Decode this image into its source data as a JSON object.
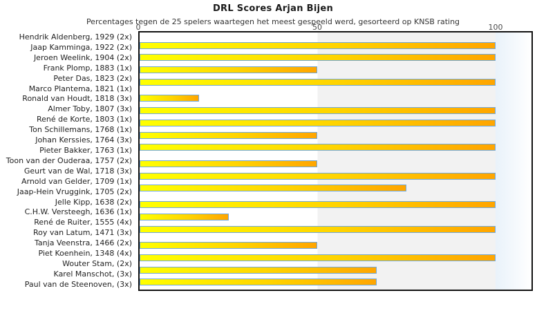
{
  "chart_data": {
    "type": "bar",
    "orientation": "horizontal",
    "title": "DRL Scores Arjan Bijen",
    "subtitle": "Percentages tegen de 25 spelers waartegen het meest gespeeld werd, gesorteerd op KNSB rating",
    "xlabel": "",
    "ylabel": "",
    "xticks": [
      "0",
      "50",
      "100"
    ],
    "xlim": [
      0,
      110
    ],
    "grid": "off",
    "legend": "none",
    "background_band_50_100": "#F2F2F2",
    "background_band_beyond_100": "#E9F2FA",
    "bar_gradient": [
      "#FFFF00",
      "#FFA500"
    ],
    "bar_border_color": "#6FA8DC",
    "players": [
      {
        "label": "Hendrik Aldenberg, 1929 (2x)",
        "name": "Hendrik Aldenberg",
        "rating": 1929,
        "games": "2x",
        "percent": 0
      },
      {
        "label": "Jaap Kamminga, 1922 (2x)",
        "name": "Jaap Kamminga",
        "rating": 1922,
        "games": "2x",
        "percent": 0
      },
      {
        "label": "Jeroen Weelink, 1904 (2x)",
        "name": "Jeroen Weelink",
        "rating": 1904,
        "games": "2x",
        "percent": 100
      },
      {
        "label": "Frank Plomp, 1883 (1x)",
        "name": "Frank Plomp",
        "rating": 1883,
        "games": "1x",
        "percent": 100
      },
      {
        "label": "Peter Das, 1823 (2x)",
        "name": "Peter Das",
        "rating": 1823,
        "games": "2x",
        "percent": 50
      },
      {
        "label": "Marco Plantema, 1821 (1x)",
        "name": "Marco Plantema",
        "rating": 1821,
        "games": "1x",
        "percent": 100
      },
      {
        "label": "Ronald van Houdt, 1818 (3x)",
        "name": "Ronald van Houdt",
        "rating": 1818,
        "games": "3x",
        "percent": 0
      },
      {
        "label": "Almer Toby, 1807 (3x)",
        "name": "Almer Toby",
        "rating": 1807,
        "games": "3x",
        "percent": 16.7
      },
      {
        "label": "René de Korte, 1803 (1x)",
        "name": "René de Korte",
        "rating": 1803,
        "games": "1x",
        "percent": 100
      },
      {
        "label": "Ton Schillemans, 1768 (1x)",
        "name": "Ton Schillemans",
        "rating": 1768,
        "games": "1x",
        "percent": 100
      },
      {
        "label": "Johan Kerssies, 1764 (3x)",
        "name": "Johan Kerssies",
        "rating": 1764,
        "games": "3x",
        "percent": 50
      },
      {
        "label": "Pieter Bakker, 1763 (1x)",
        "name": "Pieter Bakker",
        "rating": 1763,
        "games": "1x",
        "percent": 100
      },
      {
        "label": "Toon van der Ouderaa, 1757 (2x)",
        "name": "Toon van der Ouderaa",
        "rating": 1757,
        "games": "2x",
        "percent": 0
      },
      {
        "label": "Geurt van de Wal, 1718 (3x)",
        "name": "Geurt van de Wal",
        "rating": 1718,
        "games": "3x",
        "percent": 50
      },
      {
        "label": "Arnold van Gelder, 1709 (1x)",
        "name": "Arnold van Gelder",
        "rating": 1709,
        "games": "1x",
        "percent": 100
      },
      {
        "label": "Jaap-Hein Vruggink, 1705 (2x)",
        "name": "Jaap-Hein Vruggink",
        "rating": 1705,
        "games": "2x",
        "percent": 75
      },
      {
        "label": "Jelle Kipp, 1638 (2x)",
        "name": "Jelle Kipp",
        "rating": 1638,
        "games": "2x",
        "percent": 0
      },
      {
        "label": "C.H.W. Versteegh, 1636 (1x)",
        "name": "C.H.W. Versteegh",
        "rating": 1636,
        "games": "1x",
        "percent": 100
      },
      {
        "label": "René de Ruiter, 1555 (4x)",
        "name": "René de Ruiter",
        "rating": 1555,
        "games": "4x",
        "percent": 25
      },
      {
        "label": "Roy van Latum, 1471 (3x)",
        "name": "Roy van Latum",
        "rating": 1471,
        "games": "3x",
        "percent": 100
      },
      {
        "label": "Tanja Veenstra, 1466 (2x)",
        "name": "Tanja Veenstra",
        "rating": 1466,
        "games": "2x",
        "percent": 0
      },
      {
        "label": "Piet Koenhein, 1348 (4x)",
        "name": "Piet Koenhein",
        "rating": 1348,
        "games": "4x",
        "percent": 50
      },
      {
        "label": "Wouter Stam,  (2x)",
        "name": "Wouter Stam",
        "rating": null,
        "games": "2x",
        "percent": 100
      },
      {
        "label": "Karel Manschot,  (3x)",
        "name": "Karel Manschot",
        "rating": null,
        "games": "3x",
        "percent": 66.7
      },
      {
        "label": "Paul van de Steenoven,  (3x)",
        "name": "Paul van de Steenoven",
        "rating": null,
        "games": "3x",
        "percent": 66.7
      }
    ]
  }
}
